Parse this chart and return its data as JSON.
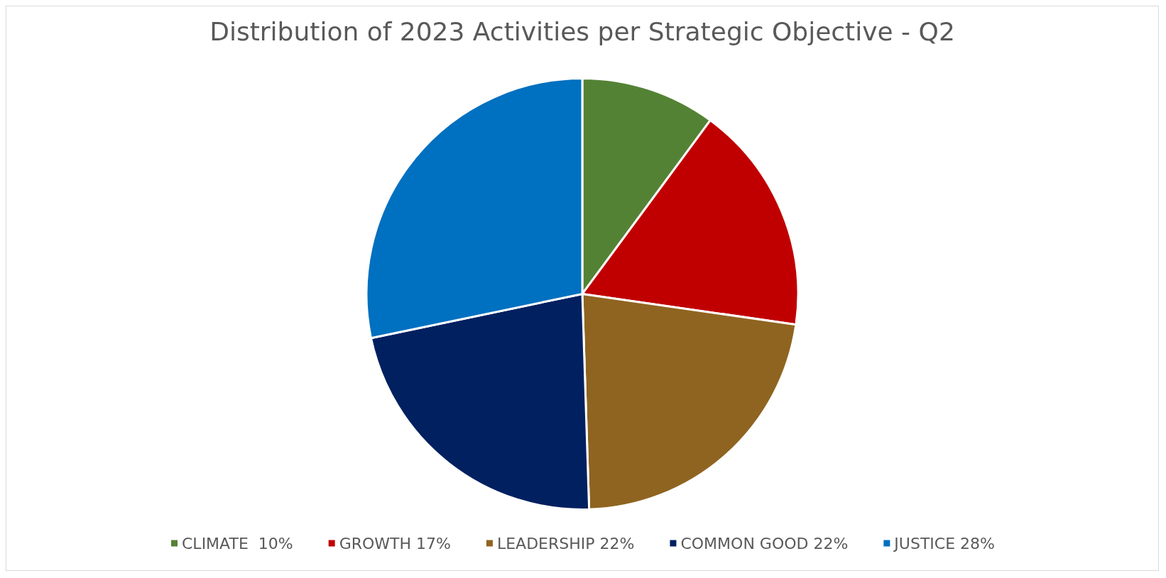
{
  "chart_data": {
    "type": "pie",
    "title": "Distribution of 2023 Activities per Strategic Objective - Q2",
    "categories": [
      "CLIMATE  10%",
      "GROWTH 17%",
      "LEADERSHIP 22%",
      "COMMON GOOD 22%",
      "JUSTICE 28%"
    ],
    "values": [
      10,
      17,
      22,
      22,
      28
    ],
    "colors": [
      "#548235",
      "#c00000",
      "#8f6420",
      "#002060",
      "#0070c0"
    ],
    "legend": "bottom"
  }
}
